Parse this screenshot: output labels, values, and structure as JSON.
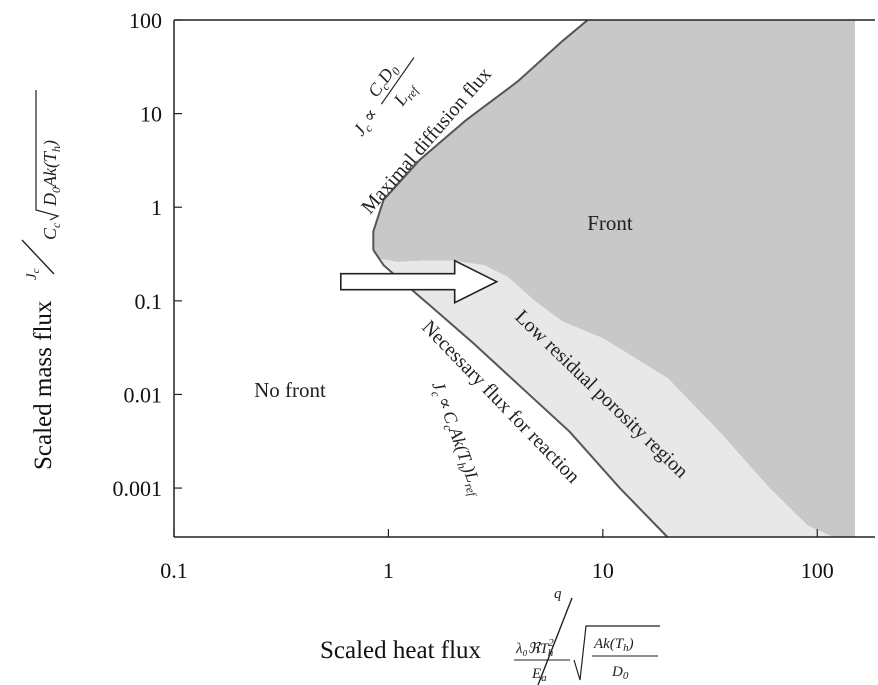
{
  "chart_data": {
    "type": "area",
    "xscale": "log",
    "yscale": "log",
    "xlim": [
      0.1,
      150
    ],
    "ylim": [
      0.0003,
      100
    ],
    "grid": false,
    "xticks": [
      {
        "value": 0.1,
        "label": "0.1"
      },
      {
        "value": 1,
        "label": "1"
      },
      {
        "value": 10,
        "label": "10"
      },
      {
        "value": 100,
        "label": "100"
      }
    ],
    "yticks": [
      {
        "value": 100,
        "label": "100"
      },
      {
        "value": 10,
        "label": "10"
      },
      {
        "value": 1,
        "label": "1"
      },
      {
        "value": 0.1,
        "label": "0.1"
      },
      {
        "value": 0.01,
        "label": "0.01"
      },
      {
        "value": 0.001,
        "label": "0.001"
      }
    ],
    "xlabel": "Scaled heat flux",
    "ylabel": "Scaled mass flux",
    "xlabel_formula": {
      "num": "q",
      "den1": "λ₀ℜT",
      "den1_sup": "2",
      "den1_sub": "h",
      "den2": "E",
      "den2_sub": "a",
      "root_num": "Ak(T",
      "root_num_sub": "h",
      "root_num_end": ")",
      "root_den": "D",
      "root_den_sub": "0"
    },
    "ylabel_formula": {
      "num": "J",
      "num_sub": "c",
      "den_pre": "C",
      "den_pre_sub": "c",
      "root": "D",
      "root_sub": "0",
      "root_mid": "Ak(T",
      "root_mid_sub": "h",
      "root_end": ")"
    },
    "series": [
      {
        "name": "Front",
        "points": [
          [
            0.85,
            0.35
          ],
          [
            0.85,
            0.55
          ],
          [
            0.95,
            1.2
          ],
          [
            1.4,
            3.2
          ],
          [
            2.3,
            8.5
          ],
          [
            4.0,
            22
          ],
          [
            6.5,
            60
          ],
          [
            8.5,
            100
          ],
          [
            150,
            100
          ],
          [
            150,
            0.0003
          ],
          [
            118,
            0.0003
          ],
          [
            90,
            0.0004
          ],
          [
            60,
            0.001
          ],
          [
            35,
            0.004
          ],
          [
            20,
            0.015
          ],
          [
            10,
            0.04
          ],
          [
            6.5,
            0.06
          ],
          [
            4.8,
            0.1
          ],
          [
            3.6,
            0.18
          ],
          [
            2.8,
            0.24
          ],
          [
            2.0,
            0.27
          ],
          [
            1.5,
            0.27
          ],
          [
            1.1,
            0.26
          ],
          [
            0.92,
            0.28
          ]
        ],
        "color": "#c8c8c8"
      },
      {
        "name": "Low residual porosity region",
        "points": [
          [
            0.92,
            0.28
          ],
          [
            1.1,
            0.26
          ],
          [
            1.5,
            0.27
          ],
          [
            2.0,
            0.27
          ],
          [
            2.8,
            0.24
          ],
          [
            3.6,
            0.18
          ],
          [
            4.8,
            0.1
          ],
          [
            6.5,
            0.06
          ],
          [
            10,
            0.04
          ],
          [
            20,
            0.015
          ],
          [
            35,
            0.004
          ],
          [
            60,
            0.001
          ],
          [
            90,
            0.0004
          ],
          [
            118,
            0.0003
          ],
          [
            20,
            0.0003
          ],
          [
            12,
            0.001
          ],
          [
            7,
            0.004
          ],
          [
            4,
            0.013
          ],
          [
            2.5,
            0.035
          ],
          [
            1.6,
            0.085
          ],
          [
            1.2,
            0.15
          ],
          [
            0.95,
            0.24
          ]
        ],
        "color": "#e8e8e8"
      }
    ],
    "boundaries": [
      {
        "name": "Maximal diffusion flux",
        "points": [
          [
            0.85,
            0.35
          ],
          [
            0.85,
            0.55
          ],
          [
            0.95,
            1.2
          ],
          [
            1.4,
            3.2
          ],
          [
            2.3,
            8.5
          ],
          [
            4.0,
            22
          ],
          [
            6.5,
            60
          ],
          [
            8.5,
            100
          ]
        ]
      },
      {
        "name": "Necessary flux for reaction",
        "points": [
          [
            0.85,
            0.35
          ],
          [
            0.95,
            0.24
          ],
          [
            1.2,
            0.15
          ],
          [
            1.6,
            0.085
          ],
          [
            2.5,
            0.035
          ],
          [
            4,
            0.013
          ],
          [
            7,
            0.004
          ],
          [
            12,
            0.001
          ],
          [
            20,
            0.0003
          ]
        ]
      }
    ],
    "annotations": {
      "front": "Front",
      "no_front": "No front",
      "low_porosity": "Low residual porosity region",
      "maximal_diffusion": "Maximal diffusion flux",
      "necessary_flux": "Necessary flux for reaction",
      "eq_top": {
        "lhs": "J",
        "lhs_sub": "c",
        "prop": "∝",
        "num": "C",
        "num_sub": "c",
        "num2": "D",
        "num2_sub": "0",
        "den": "L",
        "den_sub": "ref"
      },
      "eq_bottom": {
        "lhs": "J",
        "lhs_sub": "c",
        "prop": "∝",
        "body": "C",
        "body_sub": "c",
        "body2": "Ak(T",
        "body2_sub": "h",
        "body3": ")L",
        "body3_sub": "ref"
      }
    },
    "arrow": {
      "from": [
        0.6,
        0.16
      ],
      "to": [
        3.2,
        0.16
      ],
      "color": "#ffffff",
      "stroke": "#222222"
    }
  }
}
